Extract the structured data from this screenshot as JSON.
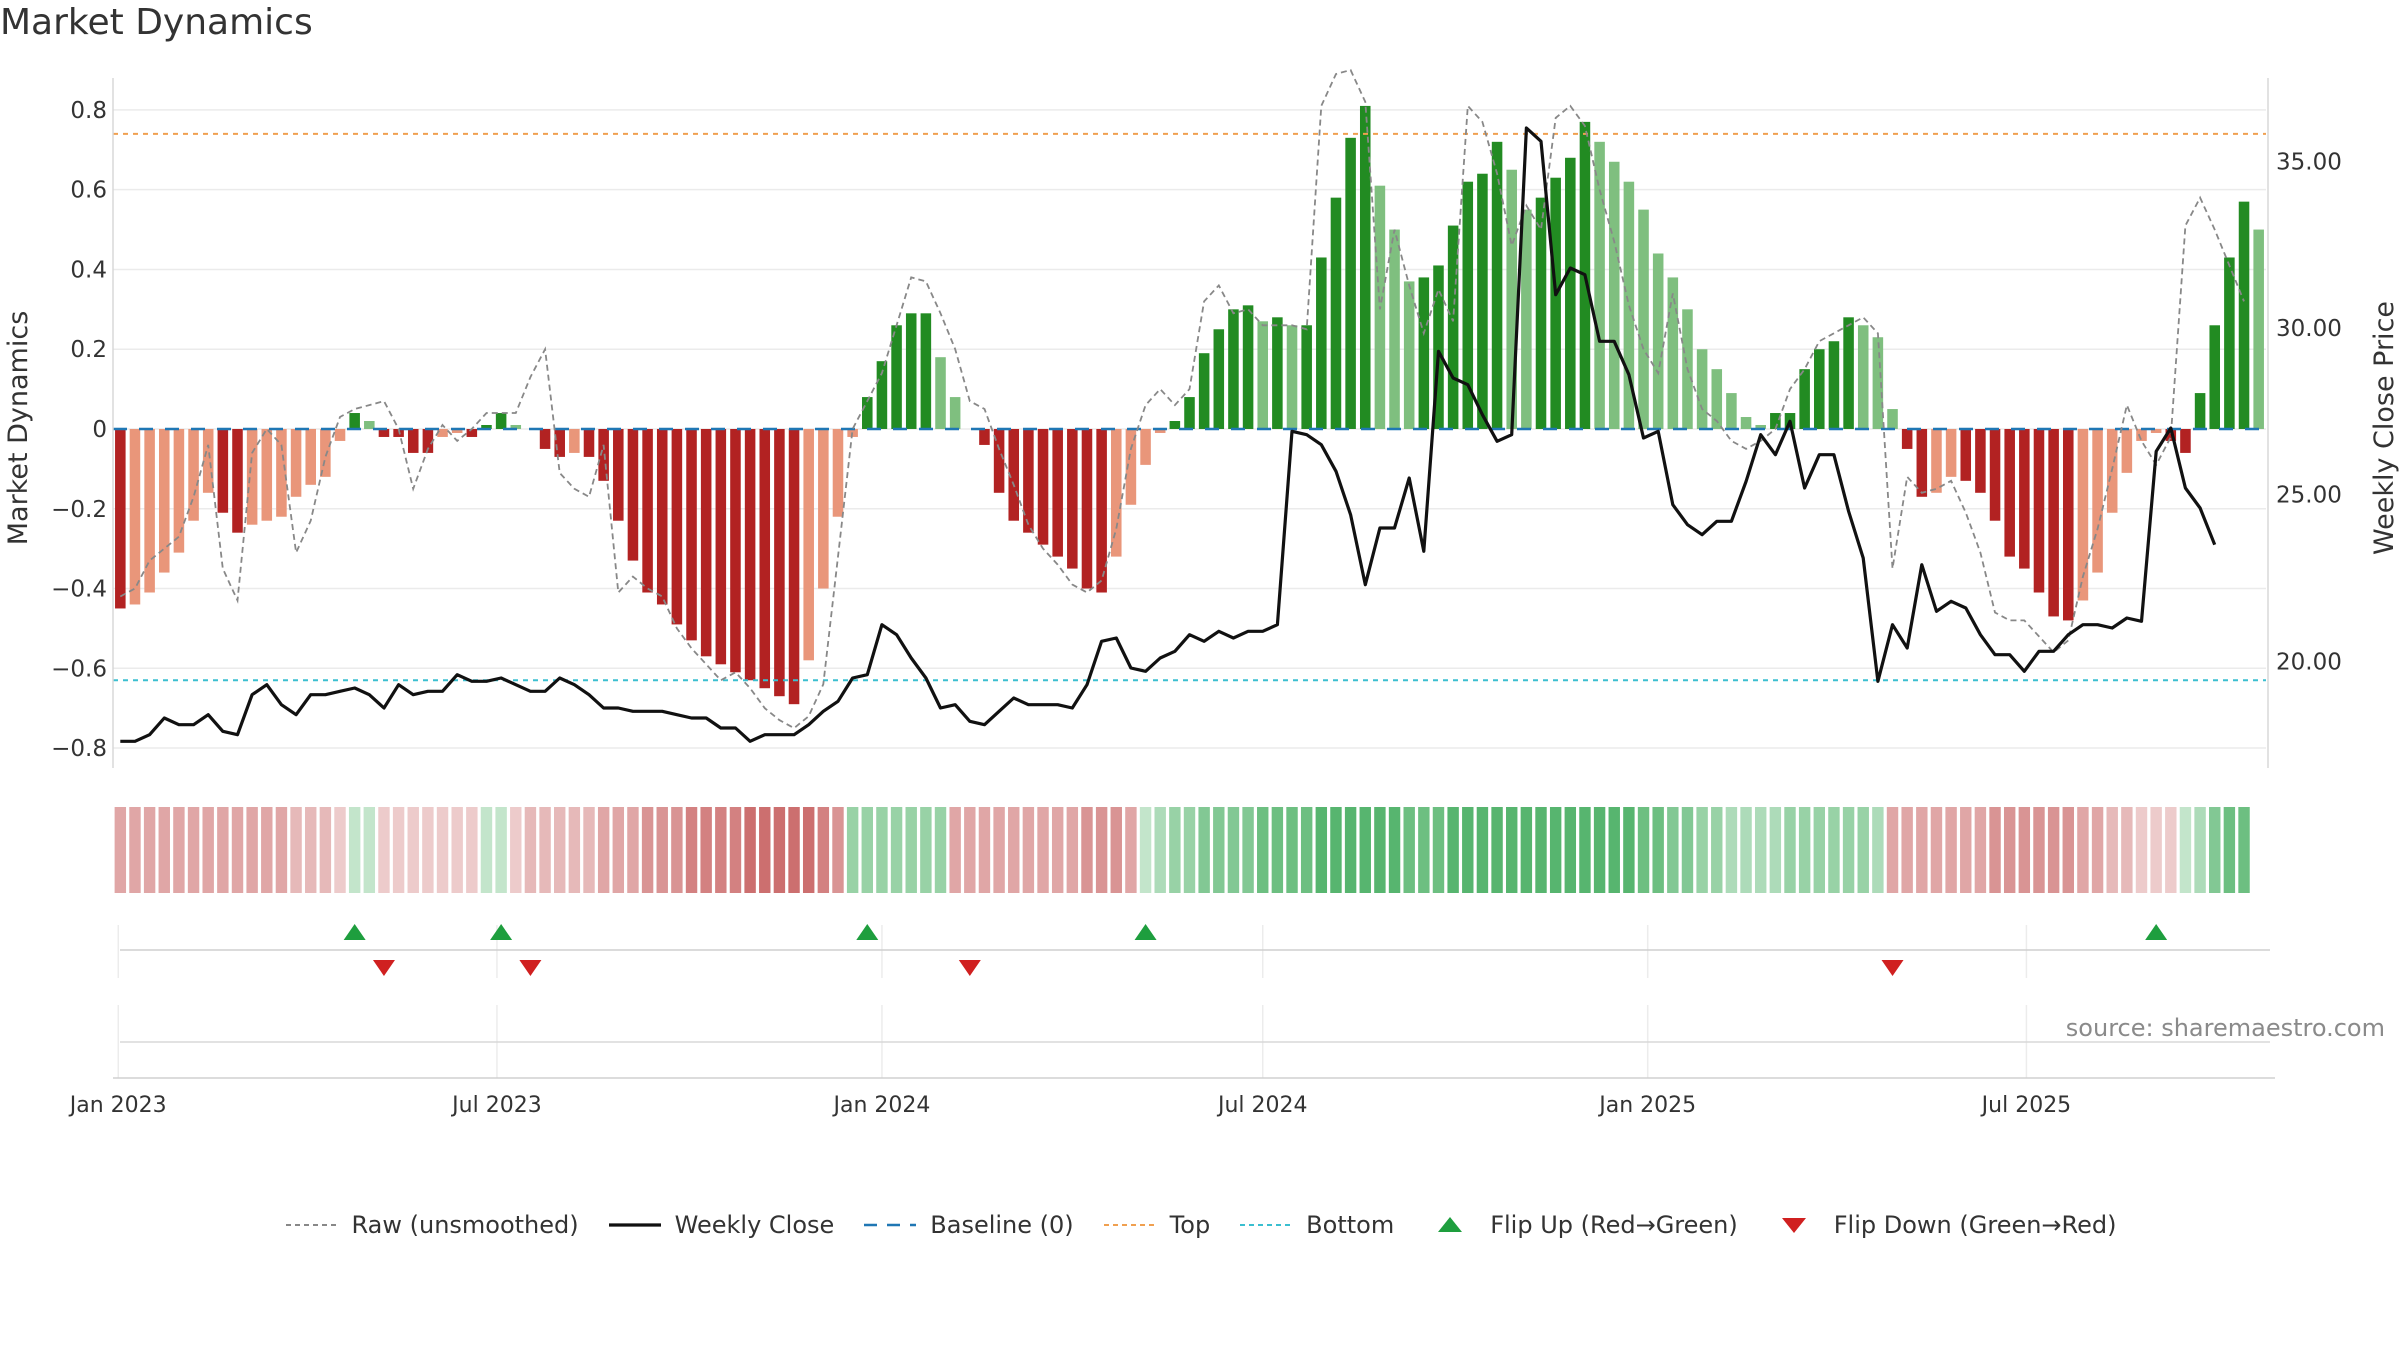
{
  "title": "Market Dynamics",
  "source": "source: sharemaestro.com",
  "colors": {
    "strong_red": "#b22222",
    "light_red": "#e9967a",
    "strong_green": "#228b22",
    "light_green": "#7fbf7f",
    "raw": "#888888",
    "close": "#111111",
    "baseline": "#1f77b4",
    "top": "#f0a050",
    "bottom": "#3bbfd0",
    "flip_up": "#1e9e3e",
    "flip_down": "#d02020"
  },
  "legend": [
    {
      "key": "raw",
      "label": "Raw (unsmoothed)"
    },
    {
      "key": "close",
      "label": "Weekly Close"
    },
    {
      "key": "baseline",
      "label": "Baseline (0)"
    },
    {
      "key": "top",
      "label": "Top"
    },
    {
      "key": "bottom",
      "label": "Bottom"
    },
    {
      "key": "flip_up",
      "label": "Flip Up (Red→Green)"
    },
    {
      "key": "flip_down",
      "label": "Flip Down (Green→Red)"
    }
  ],
  "chart_data": {
    "type": "bar",
    "ylabel_left": "Market Dynamics",
    "ylabel_right": "Weekly Close Price",
    "ylim_left": [
      -0.85,
      0.88
    ],
    "ylim_right": [
      16.8,
      37.5
    ],
    "yticks_left": [
      "−0.8",
      "−0.6",
      "−0.4",
      "−0.2",
      "0",
      "0.2",
      "0.4",
      "0.6",
      "0.8"
    ],
    "yticks_right": [
      "20.00",
      "25.00",
      "30.00",
      "35.00"
    ],
    "x_start": "2023-01-02",
    "xticks": [
      {
        "date": "2023-01-01",
        "label": "Jan 2023"
      },
      {
        "date": "2023-07-01",
        "label": "Jul 2023"
      },
      {
        "date": "2024-01-01",
        "label": "Jan 2024"
      },
      {
        "date": "2024-07-01",
        "label": "Jul 2024"
      },
      {
        "date": "2025-01-01",
        "label": "Jan 2025"
      },
      {
        "date": "2025-07-01",
        "label": "Jul 2025"
      }
    ],
    "top_level": 0.74,
    "bottom_level": -0.63,
    "grid": true,
    "legend_position": "bottom",
    "momentum": [
      -0.45,
      -0.44,
      -0.41,
      -0.36,
      -0.31,
      -0.23,
      -0.16,
      -0.21,
      -0.26,
      -0.24,
      -0.23,
      -0.22,
      -0.17,
      -0.14,
      -0.12,
      -0.03,
      0.04,
      0.02,
      -0.02,
      -0.02,
      -0.06,
      -0.06,
      -0.02,
      -0.01,
      -0.02,
      0.01,
      0.04,
      0.01,
      0.0,
      -0.05,
      -0.07,
      -0.06,
      -0.07,
      -0.13,
      -0.23,
      -0.33,
      -0.41,
      -0.44,
      -0.49,
      -0.53,
      -0.57,
      -0.59,
      -0.61,
      -0.63,
      -0.65,
      -0.67,
      -0.69,
      -0.58,
      -0.4,
      -0.22,
      -0.02,
      0.08,
      0.17,
      0.26,
      0.29,
      0.29,
      0.18,
      0.08,
      0.0,
      -0.04,
      -0.16,
      -0.23,
      -0.26,
      -0.29,
      -0.32,
      -0.35,
      -0.4,
      -0.41,
      -0.32,
      -0.19,
      -0.09,
      -0.01,
      0.02,
      0.08,
      0.19,
      0.25,
      0.3,
      0.31,
      0.27,
      0.28,
      0.26,
      0.26,
      0.43,
      0.58,
      0.73,
      0.81,
      0.61,
      0.5,
      0.37,
      0.38,
      0.41,
      0.51,
      0.62,
      0.64,
      0.72,
      0.65,
      0.55,
      0.58,
      0.63,
      0.68,
      0.77,
      0.72,
      0.67,
      0.62,
      0.55,
      0.44,
      0.38,
      0.3,
      0.2,
      0.15,
      0.09,
      0.03,
      0.01,
      0.04,
      0.04,
      0.15,
      0.2,
      0.22,
      0.28,
      0.26,
      0.23,
      0.05,
      -0.05,
      -0.17,
      -0.16,
      -0.12,
      -0.13,
      -0.16,
      -0.23,
      -0.32,
      -0.35,
      -0.41,
      -0.47,
      -0.48,
      -0.43,
      -0.36,
      -0.21,
      -0.11,
      -0.03,
      -0.01,
      -0.03,
      -0.06,
      0.09,
      0.26,
      0.43,
      0.57,
      0.5
    ],
    "raw": [
      -0.42,
      -0.4,
      -0.33,
      -0.3,
      -0.27,
      -0.17,
      -0.04,
      -0.35,
      -0.43,
      -0.06,
      0.0,
      -0.04,
      -0.31,
      -0.23,
      -0.07,
      0.03,
      0.05,
      0.06,
      0.07,
      0.0,
      -0.15,
      -0.05,
      0.01,
      -0.03,
      0.0,
      0.04,
      0.04,
      0.04,
      0.13,
      0.2,
      -0.11,
      -0.15,
      -0.17,
      -0.04,
      -0.41,
      -0.37,
      -0.4,
      -0.42,
      -0.5,
      -0.55,
      -0.59,
      -0.63,
      -0.61,
      -0.65,
      -0.7,
      -0.73,
      -0.75,
      -0.72,
      -0.64,
      -0.32,
      0.0,
      0.07,
      0.14,
      0.26,
      0.38,
      0.37,
      0.29,
      0.2,
      0.07,
      0.05,
      -0.05,
      -0.14,
      -0.24,
      -0.3,
      -0.34,
      -0.39,
      -0.41,
      -0.38,
      -0.25,
      -0.05,
      0.06,
      0.1,
      0.06,
      0.1,
      0.32,
      0.36,
      0.29,
      0.3,
      0.26,
      0.26,
      0.26,
      0.25,
      0.81,
      0.89,
      0.9,
      0.82,
      0.3,
      0.5,
      0.36,
      0.24,
      0.35,
      0.27,
      0.81,
      0.77,
      0.64,
      0.46,
      0.56,
      0.5,
      0.78,
      0.81,
      0.76,
      0.6,
      0.47,
      0.31,
      0.2,
      0.14,
      0.34,
      0.15,
      0.05,
      0.02,
      -0.03,
      -0.05,
      -0.03,
      0.0,
      0.1,
      0.15,
      0.22,
      0.24,
      0.26,
      0.28,
      0.24,
      -0.35,
      -0.12,
      -0.16,
      -0.15,
      -0.13,
      -0.21,
      -0.31,
      -0.46,
      -0.48,
      -0.48,
      -0.52,
      -0.56,
      -0.53,
      -0.37,
      -0.25,
      -0.1,
      0.06,
      -0.03,
      -0.09,
      -0.02,
      0.51,
      0.58,
      0.5,
      0.41,
      0.32
    ],
    "close": [
      17.6,
      17.6,
      17.8,
      18.3,
      18.1,
      18.1,
      18.4,
      17.9,
      17.8,
      19.0,
      19.3,
      18.7,
      18.4,
      19.0,
      19.0,
      19.1,
      19.2,
      19.0,
      18.6,
      19.3,
      19.0,
      19.1,
      19.1,
      19.6,
      19.4,
      19.4,
      19.5,
      19.3,
      19.1,
      19.1,
      19.5,
      19.3,
      19.0,
      18.6,
      18.6,
      18.5,
      18.5,
      18.5,
      18.4,
      18.3,
      18.3,
      18.0,
      18.0,
      17.6,
      17.8,
      17.8,
      17.8,
      18.1,
      18.5,
      18.8,
      19.5,
      19.6,
      21.1,
      20.8,
      20.1,
      19.5,
      18.6,
      18.7,
      18.2,
      18.1,
      18.5,
      18.9,
      18.7,
      18.7,
      18.7,
      18.6,
      19.3,
      20.6,
      20.7,
      19.8,
      19.7,
      20.1,
      20.3,
      20.8,
      20.6,
      20.9,
      20.7,
      20.9,
      20.9,
      21.1,
      26.9,
      26.8,
      26.5,
      25.7,
      24.4,
      22.3,
      24.0,
      24.0,
      25.5,
      23.3,
      29.3,
      28.5,
      28.3,
      27.4,
      26.6,
      26.8,
      36.0,
      35.6,
      31.0,
      31.8,
      31.6,
      29.6,
      29.6,
      28.6,
      26.7,
      26.9,
      24.7,
      24.1,
      23.8,
      24.2,
      24.2,
      25.4,
      26.8,
      26.2,
      27.2,
      25.2,
      26.2,
      26.2,
      24.5,
      23.1,
      19.4,
      21.1,
      20.4,
      22.9,
      21.5,
      21.8,
      21.6,
      20.8,
      20.2,
      20.2,
      19.7,
      20.3,
      20.3,
      20.8,
      21.1,
      21.1,
      21.0,
      21.3,
      21.2,
      26.3,
      27.0,
      25.2,
      24.6,
      23.5
    ],
    "heat": [
      -0.3,
      -0.3,
      -0.3,
      -0.3,
      -0.3,
      -0.3,
      -0.3,
      -0.3,
      -0.3,
      -0.3,
      -0.3,
      -0.3,
      -0.2,
      -0.2,
      -0.2,
      -0.1,
      0.1,
      0.1,
      -0.1,
      -0.1,
      -0.1,
      -0.1,
      -0.1,
      -0.1,
      -0.1,
      0.1,
      0.1,
      -0.1,
      -0.2,
      -0.2,
      -0.2,
      -0.2,
      -0.2,
      -0.3,
      -0.3,
      -0.3,
      -0.4,
      -0.4,
      -0.4,
      -0.5,
      -0.5,
      -0.5,
      -0.5,
      -0.6,
      -0.6,
      -0.6,
      -0.6,
      -0.6,
      -0.5,
      -0.4,
      0.3,
      0.3,
      0.3,
      0.3,
      0.3,
      0.3,
      0.3,
      -0.3,
      -0.3,
      -0.3,
      -0.3,
      -0.3,
      -0.3,
      -0.3,
      -0.3,
      -0.3,
      -0.4,
      -0.4,
      -0.4,
      -0.3,
      0.1,
      0.2,
      0.3,
      0.3,
      0.4,
      0.4,
      0.4,
      0.4,
      0.5,
      0.5,
      0.5,
      0.5,
      0.6,
      0.6,
      0.6,
      0.6,
      0.6,
      0.6,
      0.5,
      0.5,
      0.5,
      0.6,
      0.6,
      0.6,
      0.6,
      0.6,
      0.6,
      0.6,
      0.6,
      0.6,
      0.6,
      0.6,
      0.6,
      0.6,
      0.5,
      0.5,
      0.4,
      0.4,
      0.3,
      0.3,
      0.2,
      0.2,
      0.2,
      0.2,
      0.3,
      0.3,
      0.3,
      0.3,
      0.3,
      0.3,
      0.2,
      -0.3,
      -0.3,
      -0.3,
      -0.3,
      -0.3,
      -0.3,
      -0.3,
      -0.4,
      -0.4,
      -0.4,
      -0.4,
      -0.4,
      -0.4,
      -0.3,
      -0.3,
      -0.2,
      -0.2,
      -0.1,
      -0.1,
      -0.1,
      0.1,
      0.2,
      0.4,
      0.5,
      0.5
    ],
    "flips_up": [
      16,
      26,
      51,
      70,
      139
    ],
    "flips_down": [
      18,
      28,
      58,
      121
    ]
  }
}
